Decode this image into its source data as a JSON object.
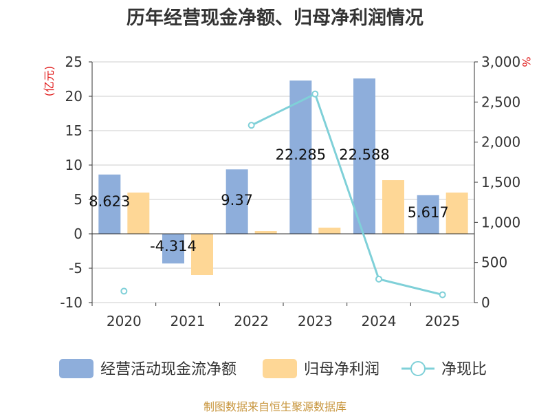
{
  "title": "历年经营现金净额、归母净利润情况",
  "source": "制图数据来自恒生聚源数据库",
  "left_unit": "(亿元)",
  "right_unit": "%",
  "colors": {
    "cashflow": "#8eaedb",
    "profit": "#fed796",
    "ratio": "#7fd0d8",
    "grid": "#cccccc",
    "axis": "#333333"
  },
  "chart_data": {
    "type": "bar",
    "title": "历年经营现金净额、归母净利润情况",
    "categories": [
      "2020",
      "2021",
      "2022",
      "2023",
      "2024",
      "2025"
    ],
    "series": [
      {
        "name": "经营活动现金流净额",
        "type": "bar",
        "axis": "left",
        "values": [
          8.623,
          -4.314,
          9.37,
          22.285,
          22.588,
          5.617
        ],
        "labels": [
          "8.623",
          "-4.314",
          "9.37",
          "22.285",
          "22.588",
          "5.617"
        ]
      },
      {
        "name": "归母净利润",
        "type": "bar",
        "axis": "left",
        "values": [
          6.0,
          -6.0,
          0.4,
          0.9,
          7.8,
          6.0
        ]
      },
      {
        "name": "净现比",
        "type": "line",
        "axis": "right",
        "values": [
          143,
          null,
          2210,
          2600,
          293,
          98
        ]
      }
    ],
    "left_axis": {
      "label": "(亿元)",
      "min": -10,
      "max": 25,
      "ticks": [
        -10,
        -5,
        0,
        5,
        10,
        15,
        20,
        25
      ],
      "tick_labels": [
        "-10",
        "-5",
        "0",
        "5",
        "10",
        "15",
        "20",
        "25"
      ]
    },
    "right_axis": {
      "label": "%",
      "min": 0,
      "max": 3000,
      "ticks": [
        0,
        500,
        1000,
        1500,
        2000,
        2500,
        3000
      ],
      "tick_labels": [
        "0",
        "500",
        "1,000",
        "1,500",
        "2,000",
        "2,500",
        "3,000"
      ]
    },
    "legend": [
      "经营活动现金流净额",
      "归母净利润",
      "净现比"
    ],
    "legend_position": "bottom",
    "grid": true
  }
}
